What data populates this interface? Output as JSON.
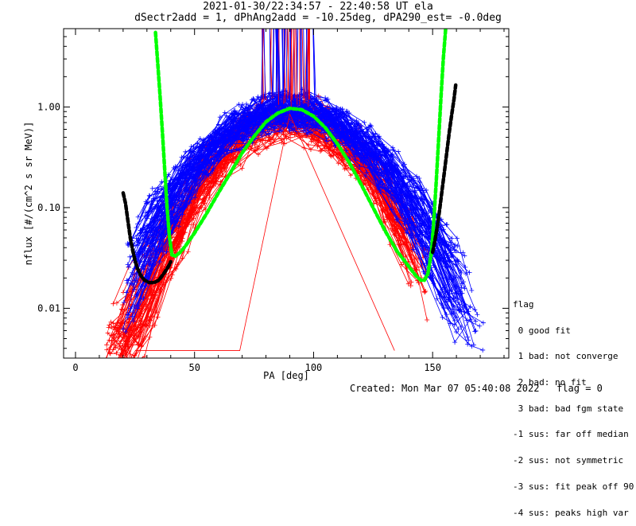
{
  "title_line1": "2021-01-30/22:34:57 - 22:40:58 UT ela",
  "title_line2": "dSectr2add = 1, dPhAng2add = -10.25deg, dPA290_est=  -0.0deg",
  "footer": {
    "created": "Created: Mon Mar 07 05:40:08 2022",
    "flag": "flag = 0"
  },
  "legend": {
    "title": "flag",
    "entries": [
      " 0 good fit",
      " 1 bad: not converge",
      " 2 bad: no fit",
      " 3 bad: bad fgm state",
      "-1 sus: far off median",
      "-2 sus: not symmetric",
      "-3 sus: fit peak off 90",
      "-4 sus: peaks high var"
    ]
  },
  "chart_data": {
    "type": "line",
    "xlabel": "PA [deg]",
    "ylabel": "nflux [#/(cm^2 s sr MeV)]",
    "xlim": [
      -5,
      182
    ],
    "ylim": [
      0.0032,
      6.0
    ],
    "yscale": "log",
    "xticks": [
      0,
      50,
      100,
      150
    ],
    "xtick_labels": [
      "0",
      "50",
      "100",
      "150"
    ],
    "yticks": [
      0.01,
      0.1,
      1.0
    ],
    "ytick_labels": [
      "0.01",
      "0.10",
      "1.00"
    ],
    "colors": {
      "blue_spectra": "#0000ff",
      "red_spectra": "#ff0000",
      "fit_good": "#00ff00",
      "fit_flagged": "#000000"
    },
    "series": [
      {
        "color": "green",
        "style": "dashed-thick",
        "x": [
          33.6,
          34.5,
          35.5,
          36.5,
          37.5,
          38.5,
          39.5,
          40.5,
          42,
          44,
          46,
          50,
          55,
          60,
          65,
          70,
          75,
          80,
          85,
          90,
          95,
          100,
          105,
          110,
          115,
          120,
          125,
          130,
          135,
          140,
          143,
          145,
          146.5,
          148,
          149.5,
          150.5,
          151.5,
          152.5,
          153.5,
          154.5,
          155.5
        ],
        "y": [
          5.5,
          2.8,
          1.3,
          0.56,
          0.23,
          0.096,
          0.05,
          0.034,
          0.033,
          0.036,
          0.041,
          0.056,
          0.087,
          0.14,
          0.22,
          0.35,
          0.51,
          0.71,
          0.87,
          0.97,
          0.94,
          0.81,
          0.62,
          0.43,
          0.28,
          0.17,
          0.1,
          0.059,
          0.037,
          0.026,
          0.021,
          0.019,
          0.019,
          0.022,
          0.036,
          0.075,
          0.18,
          0.47,
          1.25,
          3.0,
          6.0
        ]
      },
      {
        "color": "black",
        "style": "dashed-thick",
        "x": [
          20,
          21,
          22,
          23,
          24,
          25,
          26,
          27.5,
          29,
          31,
          33,
          35,
          37,
          39,
          40
        ],
        "y": [
          0.14,
          0.11,
          0.074,
          0.05,
          0.038,
          0.03,
          0.025,
          0.021,
          0.019,
          0.018,
          0.018,
          0.019,
          0.022,
          0.026,
          0.029
        ]
      },
      {
        "color": "black",
        "style": "dashed-thick",
        "x": [
          150,
          151,
          152,
          153,
          154,
          155,
          156,
          157,
          158,
          159,
          159.7
        ],
        "y": [
          0.036,
          0.048,
          0.066,
          0.098,
          0.15,
          0.23,
          0.36,
          0.56,
          0.83,
          1.2,
          1.65
        ]
      }
    ]
  }
}
